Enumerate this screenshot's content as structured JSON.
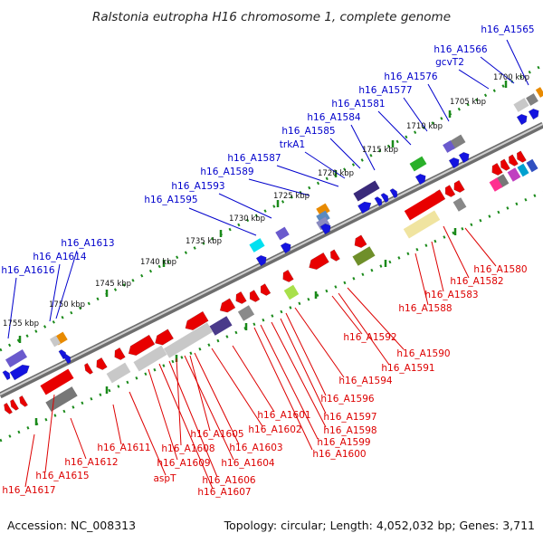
{
  "title": "Ralstonia eutropha H16 chromosome 1, complete genome",
  "footer": {
    "accession": "Accession: NC_008313",
    "summary": "Topology: circular; Length: 4,052,032 bp; Genes: 3,711"
  },
  "colors": {
    "forward_label": "#0000cc",
    "reverse_label": "#dd0000",
    "backbone": "#8a8a8a",
    "tick": "#1a8a1a"
  },
  "kbp_ticks": [
    "1700 kbp",
    "1705 kbp",
    "1710 kbp",
    "1715 kbp",
    "1720 kbp",
    "1725 kbp",
    "1730 kbp",
    "1735 kbp",
    "1740 kbp",
    "1745 kbp",
    "1750 kbp",
    "1755 kbp"
  ],
  "forward_genes": [
    "h16_A1565",
    "h16_A1566",
    "gcvT2",
    "h16_A1576",
    "h16_A1577",
    "h16_A1581",
    "h16_A1584",
    "h16_A1585",
    "trkA1",
    "h16_A1587",
    "h16_A1589",
    "h16_A1593",
    "h16_A1595",
    "h16_A1613",
    "h16_A1614",
    "h16_A1616"
  ],
  "reverse_genes": [
    "h16_A1580",
    "h16_A1582",
    "h16_A1583",
    "h16_A1588",
    "h16_A1592",
    "h16_A1590",
    "h16_A1591",
    "h16_A1594",
    "h16_A1596",
    "h16_A1597",
    "h16_A1598",
    "h16_A1599",
    "h16_A1600",
    "h16_A1601",
    "h16_A1602",
    "h16_A1603",
    "h16_A1604",
    "h16_A1605",
    "h16_A1606",
    "h16_A1607",
    "h16_A1608",
    "h16_A1609",
    "aspT",
    "h16_A1611",
    "h16_A1612",
    "h16_A1615",
    "h16_A1617"
  ]
}
